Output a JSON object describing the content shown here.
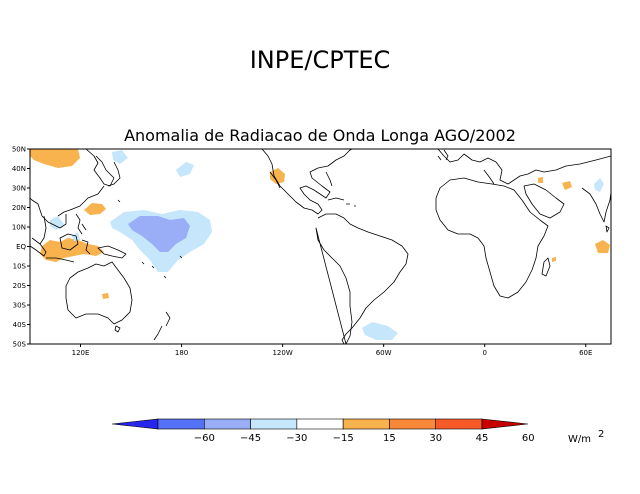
{
  "header": {
    "organization": "INPE/CPTEC",
    "title": "Anomalia de Radiacao de Onda Longa AGO/2002"
  },
  "map": {
    "lat_labels": [
      "50N",
      "40N",
      "30N",
      "20N",
      "10N",
      "EQ",
      "10S",
      "20S",
      "30S",
      "40S",
      "50S"
    ],
    "lon_labels": [
      "120E",
      "180",
      "120W",
      "60W",
      "0",
      "60E"
    ],
    "colors": {
      "land_outline": "#000000",
      "neg_strong": "#9aaef8",
      "neg_weak": "#c6e6fb",
      "pos_weak": "#f8b24e"
    }
  },
  "colorbar": {
    "tick_labels": [
      "-60",
      "-45",
      "-30",
      "-15",
      "15",
      "30",
      "45",
      "60"
    ],
    "colors": [
      "#2626ee",
      "#5571f5",
      "#9aaef8",
      "#c6e6fb",
      "#ffffff",
      "#f8b24e",
      "#f98839",
      "#f75a26",
      "#c80000"
    ],
    "units_label": "W/m",
    "units_exponent": "2"
  }
}
